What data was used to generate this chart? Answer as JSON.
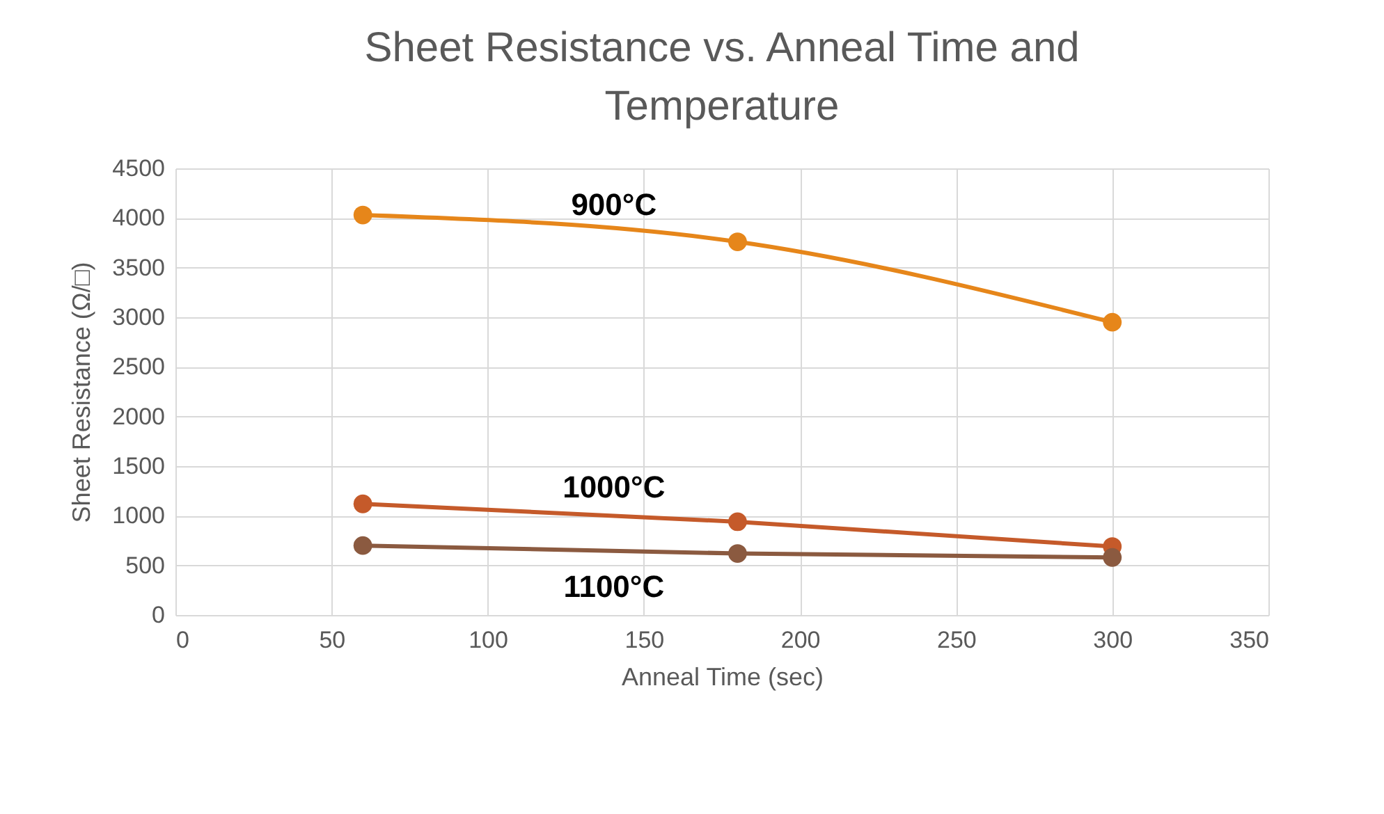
{
  "chart_data": {
    "type": "line",
    "title": "Sheet Resistance vs. Anneal Time and Temperature",
    "xlabel": "Anneal Time (sec)",
    "ylabel": "Sheet Resistance (Ω/□)",
    "x": [
      60,
      180,
      300
    ],
    "series": [
      {
        "name": "900°C",
        "color": "#e6861a",
        "values": [
          4030,
          3760,
          2950
        ]
      },
      {
        "name": "1000°C",
        "color": "#c55a2a",
        "values": [
          1120,
          940,
          690
        ]
      },
      {
        "name": "1100°C",
        "color": "#8b5a40",
        "values": [
          700,
          620,
          580
        ]
      }
    ],
    "xlim": [
      0,
      350
    ],
    "xticks": [
      0,
      50,
      100,
      150,
      200,
      250,
      300,
      350
    ],
    "ylim": [
      0,
      4500
    ],
    "yticks": [
      0,
      500,
      1000,
      1500,
      2000,
      2500,
      3000,
      3500,
      4000,
      4500
    ],
    "grid": true,
    "marker": "circle",
    "line_style": "solid",
    "legend": false
  }
}
